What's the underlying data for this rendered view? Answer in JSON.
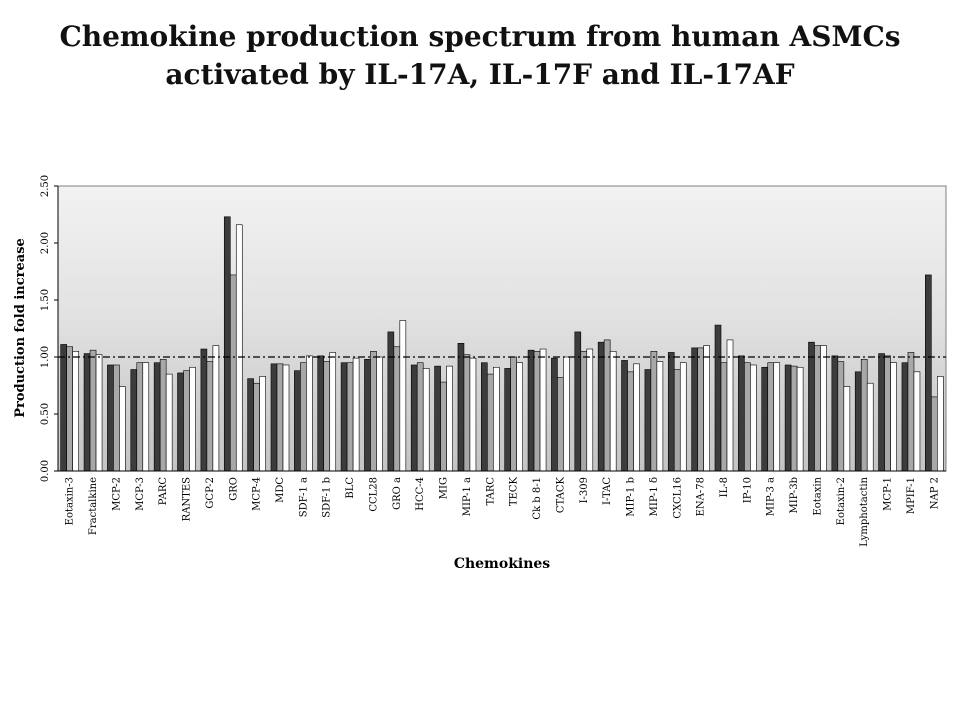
{
  "title_line1": "Chemokine production spectrum from human ASMCs",
  "title_line2": "activated by IL-17A, IL-17F and IL-17AF",
  "chart_data": {
    "type": "bar",
    "title": "Chemokine production spectrum from human ASMCs activated by IL-17A, IL-17F and IL-17AF",
    "xlabel": "Chemokines",
    "ylabel": "Production fold increase",
    "ylim": [
      0,
      2.5
    ],
    "yticks": [
      "0.00",
      "0.50",
      "1.00",
      "1.50",
      "2.00",
      "2.50"
    ],
    "reference_line": 1.0,
    "categories": [
      "Eotaxin-3",
      "Fractalkine",
      "MCP-2",
      "MCP-3",
      "PARC",
      "RANTES",
      "GCP-2",
      "GRO",
      "MCP-4",
      "MDC",
      "SDF-1 a",
      "SDF-1 b",
      "BLC",
      "CCL28",
      "GRO a",
      "HCC-4",
      "MIG",
      "MIP-1 a",
      "TARC",
      "TECK",
      "Ck b 8-1",
      "CTACK",
      "I-309",
      "I-TAC",
      "MIP-1 b",
      "MIP-1 δ",
      "CXCL16",
      "ENA-78",
      "IL-8",
      "IP-10",
      "MIP-3 a",
      "MIP-3b",
      "Eotaxin",
      "Eotaxin-2",
      "Lymphotactin",
      "MCP-1",
      "MPIF-1",
      "NAP 2"
    ],
    "series": [
      {
        "color": "#3c3c3c",
        "values": [
          1.11,
          1.03,
          0.93,
          0.89,
          0.95,
          0.86,
          1.07,
          2.23,
          0.81,
          0.94,
          0.88,
          1.01,
          0.95,
          0.98,
          1.22,
          0.93,
          0.92,
          1.12,
          0.95,
          0.9,
          1.06,
          0.99,
          1.22,
          1.13,
          0.97,
          0.89,
          1.04,
          1.08,
          1.28,
          1.01,
          0.91,
          0.93,
          1.13,
          1.01,
          0.87,
          1.03,
          0.95,
          1.72
        ]
      },
      {
        "color": "#a8a8a8",
        "values": [
          1.09,
          1.06,
          0.93,
          0.95,
          0.98,
          0.88,
          0.96,
          1.72,
          0.77,
          0.94,
          0.95,
          0.96,
          0.95,
          1.05,
          1.09,
          0.95,
          0.78,
          1.02,
          0.85,
          1.0,
          1.05,
          0.82,
          1.05,
          1.15,
          0.87,
          1.05,
          0.89,
          1.08,
          0.95,
          0.95,
          0.95,
          0.92,
          1.1,
          0.96,
          0.98,
          1.01,
          1.04,
          0.65
        ]
      },
      {
        "color": "#ffffff",
        "values": [
          1.05,
          1.02,
          0.74,
          0.95,
          0.85,
          0.91,
          1.1,
          2.16,
          0.83,
          0.93,
          1.01,
          1.04,
          0.99,
          1.0,
          1.32,
          0.9,
          0.92,
          0.99,
          0.91,
          0.95,
          1.07,
          1.0,
          1.07,
          1.05,
          0.94,
          0.96,
          0.95,
          1.1,
          1.15,
          0.93,
          0.95,
          0.91,
          1.1,
          0.74,
          0.77,
          0.95,
          0.87,
          0.83
        ]
      }
    ]
  }
}
